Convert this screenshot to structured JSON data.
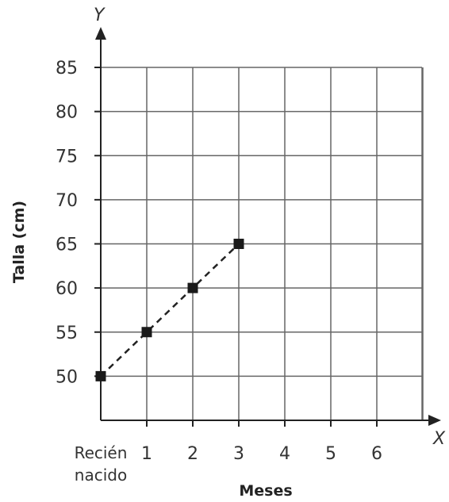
{
  "chart_data": {
    "type": "line",
    "xlabel": "Meses",
    "ylabel": "Talla (cm)",
    "x_axis_letter": "X",
    "y_axis_letter": "Y",
    "x_ticks": [
      {
        "label": "Recién",
        "label2": "nacido"
      },
      {
        "label": "1"
      },
      {
        "label": "2"
      },
      {
        "label": "3"
      },
      {
        "label": "4"
      },
      {
        "label": "5"
      },
      {
        "label": "6"
      }
    ],
    "y_ticks": [
      "50",
      "55",
      "60",
      "65",
      "70",
      "75",
      "80",
      "85"
    ],
    "ylim": [
      45,
      85
    ],
    "grid": true,
    "series": [
      {
        "x": [
          0,
          1,
          2,
          3
        ],
        "y": [
          50,
          55,
          60,
          65
        ],
        "line_style": "dashed",
        "marker": "square"
      }
    ]
  }
}
